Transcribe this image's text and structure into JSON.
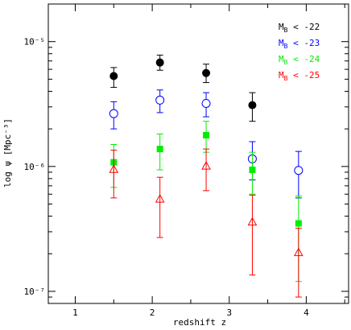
{
  "chart_data": {
    "type": "scatter",
    "xlabel": "redshift z",
    "ylabel": "log ψ [Mpc⁻³]",
    "xlim": [
      0.65,
      4.55
    ],
    "ylim": [
      8e-08,
      2e-05
    ],
    "yscale": "log",
    "x_ticks": [
      1,
      2,
      3,
      4
    ],
    "x_tick_labels": [
      "1",
      "2",
      "3",
      "4"
    ],
    "y_ticks": [
      1e-07,
      1e-06,
      1e-05
    ],
    "y_tick_labels": [
      "10⁻⁷",
      "10⁻⁶",
      "10⁻⁵"
    ],
    "grid": false,
    "legend_position": "top-right",
    "series": [
      {
        "name": "M_B < -22",
        "label_main": "M",
        "label_sub": "B",
        "label_rest": " < -22",
        "color": "#000000",
        "marker": "filled-circle",
        "points": [
          {
            "x": 1.5,
            "y": 5.3e-06,
            "lo": 4.3e-06,
            "hi": 6.2e-06
          },
          {
            "x": 2.1,
            "y": 6.8e-06,
            "lo": 5.9e-06,
            "hi": 7.8e-06
          },
          {
            "x": 2.7,
            "y": 5.6e-06,
            "lo": 4.7e-06,
            "hi": 6.6e-06
          },
          {
            "x": 3.3,
            "y": 3.1e-06,
            "lo": 2.3e-06,
            "hi": 3.9e-06
          }
        ]
      },
      {
        "name": "M_B < -23",
        "label_main": "M",
        "label_sub": "B",
        "label_rest": " < -23",
        "color": "#0000ff",
        "marker": "open-circle",
        "points": [
          {
            "x": 1.5,
            "y": 2.65e-06,
            "lo": 2e-06,
            "hi": 3.3e-06
          },
          {
            "x": 2.1,
            "y": 3.4e-06,
            "lo": 2.7e-06,
            "hi": 4.1e-06
          },
          {
            "x": 2.7,
            "y": 3.2e-06,
            "lo": 2.5e-06,
            "hi": 3.9e-06
          },
          {
            "x": 3.3,
            "y": 1.15e-06,
            "lo": 7.8e-07,
            "hi": 1.58e-06
          },
          {
            "x": 3.9,
            "y": 9.3e-07,
            "lo": 5.6e-07,
            "hi": 1.32e-06
          }
        ]
      },
      {
        "name": "M_B < -24",
        "label_main": "M",
        "label_sub": "B",
        "label_rest": " < -24",
        "color": "#00ee00",
        "marker": "filled-square",
        "points": [
          {
            "x": 1.5,
            "y": 1.08e-06,
            "lo": 6.8e-07,
            "hi": 1.5e-06
          },
          {
            "x": 2.1,
            "y": 1.38e-06,
            "lo": 9.4e-07,
            "hi": 1.82e-06
          },
          {
            "x": 2.7,
            "y": 1.78e-06,
            "lo": 1.3e-06,
            "hi": 2.3e-06
          },
          {
            "x": 3.3,
            "y": 9.4e-07,
            "lo": 6e-07,
            "hi": 1.3e-06
          },
          {
            "x": 3.9,
            "y": 3.5e-07,
            "lo": 1.2e-07,
            "hi": 5.8e-07
          }
        ]
      },
      {
        "name": "M_B < -25",
        "label_main": "M",
        "label_sub": "B",
        "label_rest": " < -25",
        "color": "#ff0000",
        "marker": "open-triangle",
        "points": [
          {
            "x": 1.5,
            "y": 9.5e-07,
            "lo": 5.6e-07,
            "hi": 1.35e-06
          },
          {
            "x": 2.1,
            "y": 5.5e-07,
            "lo": 2.7e-07,
            "hi": 8.2e-07
          },
          {
            "x": 2.7,
            "y": 1.01e-06,
            "lo": 6.4e-07,
            "hi": 1.38e-06
          },
          {
            "x": 3.3,
            "y": 3.6e-07,
            "lo": 1.35e-07,
            "hi": 5.9e-07
          },
          {
            "x": 3.9,
            "y": 2.05e-07,
            "lo": 9e-08,
            "hi": 3.2e-07
          }
        ]
      }
    ]
  }
}
